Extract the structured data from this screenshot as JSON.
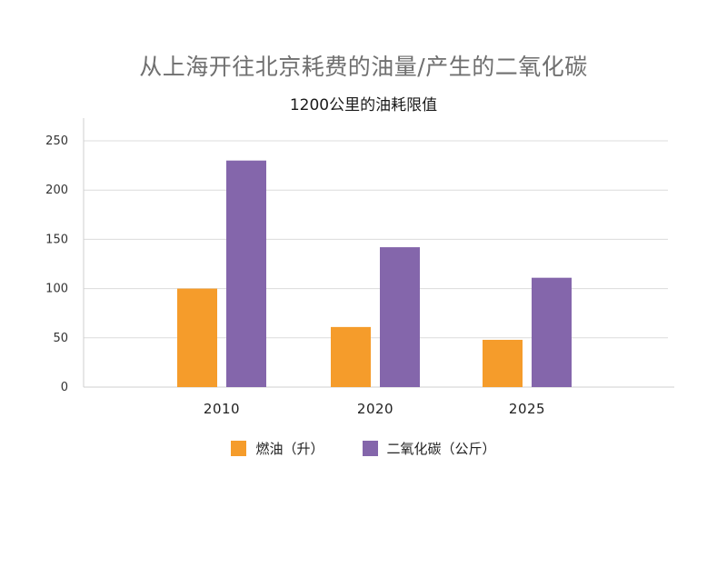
{
  "chart_data": {
    "type": "bar",
    "title": "从上海开往北京耗费的油量/产生的二氧化碳",
    "subtitle": "1200公里的油耗限值",
    "categories": [
      "2010",
      "2020",
      "2025"
    ],
    "series": [
      {
        "name": "燃油（升）",
        "color": "#f59c2b",
        "values": [
          100,
          61,
          48
        ]
      },
      {
        "name": "二氧化碳（公斤）",
        "color": "#8466ab",
        "values": [
          230,
          142,
          111
        ]
      }
    ],
    "ylim": [
      0,
      250
    ],
    "yticks": [
      "0",
      "50",
      "100",
      "150",
      "200",
      "250"
    ],
    "grid": true,
    "legend_position": "bottom"
  }
}
